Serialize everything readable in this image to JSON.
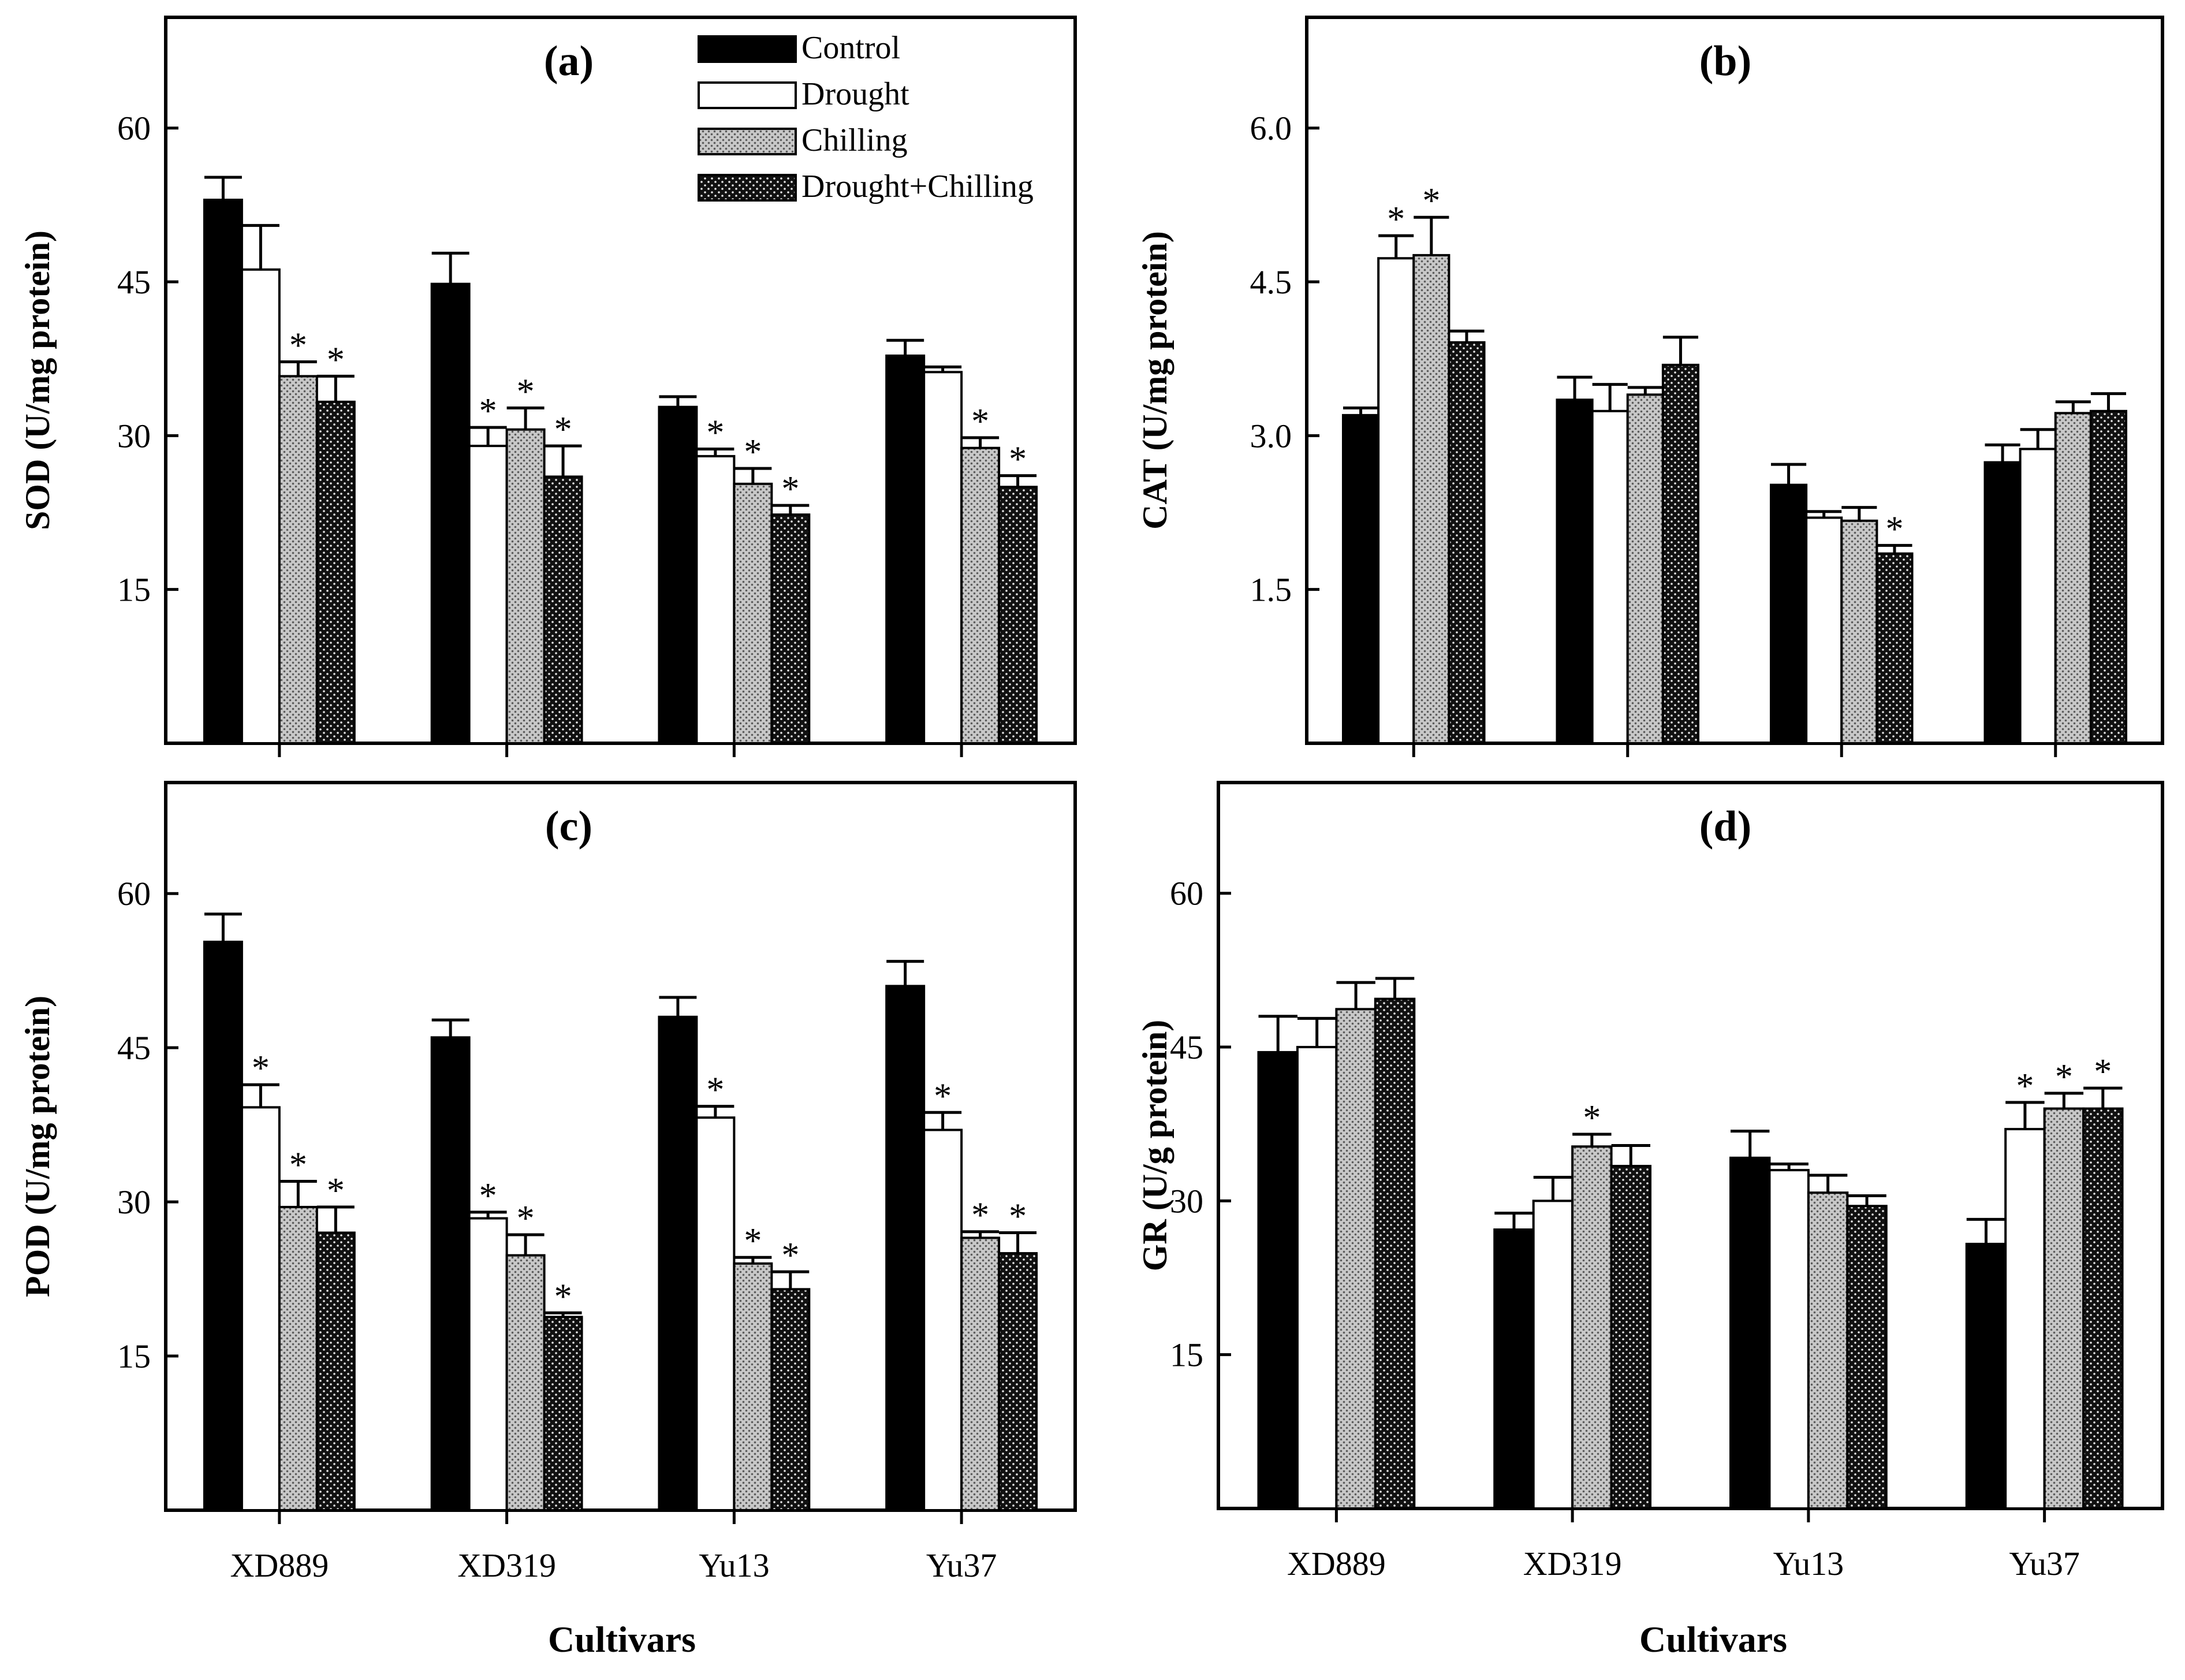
{
  "legend": [
    {
      "label": "Control",
      "pattern": "solid-black"
    },
    {
      "label": "Drought",
      "pattern": "white"
    },
    {
      "label": "Chilling",
      "pattern": "gray-dots"
    },
    {
      "label": "Drought+Chilling",
      "pattern": "black-dots"
    }
  ],
  "colors": {
    "control": "#000000",
    "drought": "#ffffff",
    "chilling": "#b8b8b8",
    "drought_chilling": "#1a1a1a"
  },
  "xlabel": "Cultivars",
  "chart_data": [
    {
      "type": "bar",
      "panel": "(a)",
      "ylabel": "SOD (U/mg protein)",
      "ylim": [
        0,
        60
      ],
      "yticks": [
        "15",
        "30",
        "45",
        "60"
      ],
      "categories": [
        "XD889",
        "XD319",
        "Yu13",
        "Yu37"
      ],
      "series": [
        {
          "name": "Control",
          "values": [
            53.0,
            44.8,
            32.8,
            37.8
          ],
          "errors": [
            2.2,
            3.0,
            1.0,
            1.5
          ]
        },
        {
          "name": "Drought",
          "values": [
            46.2,
            29.0,
            28.0,
            36.2
          ],
          "errors": [
            4.3,
            1.8,
            0.7,
            0.5
          ]
        },
        {
          "name": "Chilling",
          "values": [
            35.8,
            30.6,
            25.3,
            28.8
          ],
          "errors": [
            1.4,
            2.1,
            1.5,
            1.0
          ]
        },
        {
          "name": "Drought+Chilling",
          "values": [
            33.3,
            26.0,
            22.3,
            25.0
          ],
          "errors": [
            2.5,
            3.0,
            0.9,
            1.1
          ]
        }
      ],
      "significant": [
        [
          false,
          false,
          true,
          true
        ],
        [
          false,
          true,
          true,
          true
        ],
        [
          false,
          true,
          true,
          true
        ],
        [
          false,
          false,
          true,
          true
        ]
      ]
    },
    {
      "type": "bar",
      "panel": "(b)",
      "ylabel": "CAT (U/mg protein)",
      "ylim": [
        0,
        6.0
      ],
      "yticks": [
        "1.5",
        "3.0",
        "4.5",
        "6.0"
      ],
      "categories": [
        "XD889",
        "XD319",
        "Yu13",
        "Yu37"
      ],
      "series": [
        {
          "name": "Control",
          "values": [
            3.2,
            3.35,
            2.52,
            2.74
          ],
          "errors": [
            0.07,
            0.22,
            0.2,
            0.17
          ]
        },
        {
          "name": "Drought",
          "values": [
            4.73,
            3.24,
            2.2,
            2.87
          ],
          "errors": [
            0.22,
            0.26,
            0.06,
            0.19
          ]
        },
        {
          "name": "Chilling",
          "values": [
            4.76,
            3.4,
            2.17,
            3.22
          ],
          "errors": [
            0.37,
            0.07,
            0.13,
            0.11
          ]
        },
        {
          "name": "Drought+Chilling",
          "values": [
            3.91,
            3.69,
            1.85,
            3.24
          ],
          "errors": [
            0.11,
            0.27,
            0.08,
            0.17
          ]
        }
      ],
      "significant": [
        [
          false,
          true,
          true,
          false
        ],
        [
          false,
          false,
          false,
          false
        ],
        [
          false,
          false,
          false,
          true
        ],
        [
          false,
          false,
          false,
          false
        ]
      ]
    },
    {
      "type": "bar",
      "panel": "(c)",
      "ylabel": "POD (U/mg protein)",
      "ylim": [
        0,
        60
      ],
      "yticks": [
        "15",
        "30",
        "45",
        "60"
      ],
      "categories": [
        "XD889",
        "XD319",
        "Yu13",
        "Yu37"
      ],
      "series": [
        {
          "name": "Control",
          "values": [
            55.3,
            46.0,
            48.0,
            51.0
          ],
          "errors": [
            2.7,
            1.7,
            1.9,
            2.4
          ]
        },
        {
          "name": "Drought",
          "values": [
            39.2,
            28.4,
            38.2,
            37.0
          ],
          "errors": [
            2.2,
            0.6,
            1.1,
            1.7
          ]
        },
        {
          "name": "Chilling",
          "values": [
            29.5,
            24.8,
            24.0,
            26.5
          ],
          "errors": [
            2.5,
            2.0,
            0.6,
            0.6
          ]
        },
        {
          "name": "Drought+Chilling",
          "values": [
            27.0,
            18.8,
            21.5,
            25.0
          ],
          "errors": [
            2.5,
            0.4,
            1.7,
            2.0
          ]
        }
      ],
      "significant": [
        [
          false,
          true,
          true,
          true
        ],
        [
          false,
          true,
          true,
          true
        ],
        [
          false,
          true,
          true,
          true
        ],
        [
          false,
          true,
          true,
          true
        ]
      ]
    },
    {
      "type": "bar",
      "panel": "(d)",
      "ylabel": "GR (U/g protein)",
      "ylim": [
        0,
        60
      ],
      "yticks": [
        "15",
        "30",
        "45",
        "60"
      ],
      "categories": [
        "XD889",
        "XD319",
        "Yu13",
        "Yu37"
      ],
      "series": [
        {
          "name": "Control",
          "values": [
            44.5,
            27.2,
            34.2,
            25.8
          ],
          "errors": [
            3.5,
            1.6,
            2.6,
            2.4
          ]
        },
        {
          "name": "Drought",
          "values": [
            45.0,
            30.0,
            33.0,
            37.0
          ],
          "errors": [
            2.8,
            2.3,
            0.6,
            2.6
          ]
        },
        {
          "name": "Chilling",
          "values": [
            48.7,
            35.3,
            30.8,
            39.0
          ],
          "errors": [
            2.6,
            1.2,
            1.7,
            1.5
          ]
        },
        {
          "name": "Drought+Chilling",
          "values": [
            49.7,
            33.4,
            29.5,
            39.0
          ],
          "errors": [
            2.0,
            2.0,
            1.0,
            2.0
          ]
        }
      ],
      "significant": [
        [
          false,
          false,
          false,
          false
        ],
        [
          false,
          false,
          true,
          false
        ],
        [
          false,
          false,
          false,
          false
        ],
        [
          false,
          true,
          true,
          true
        ]
      ]
    }
  ]
}
